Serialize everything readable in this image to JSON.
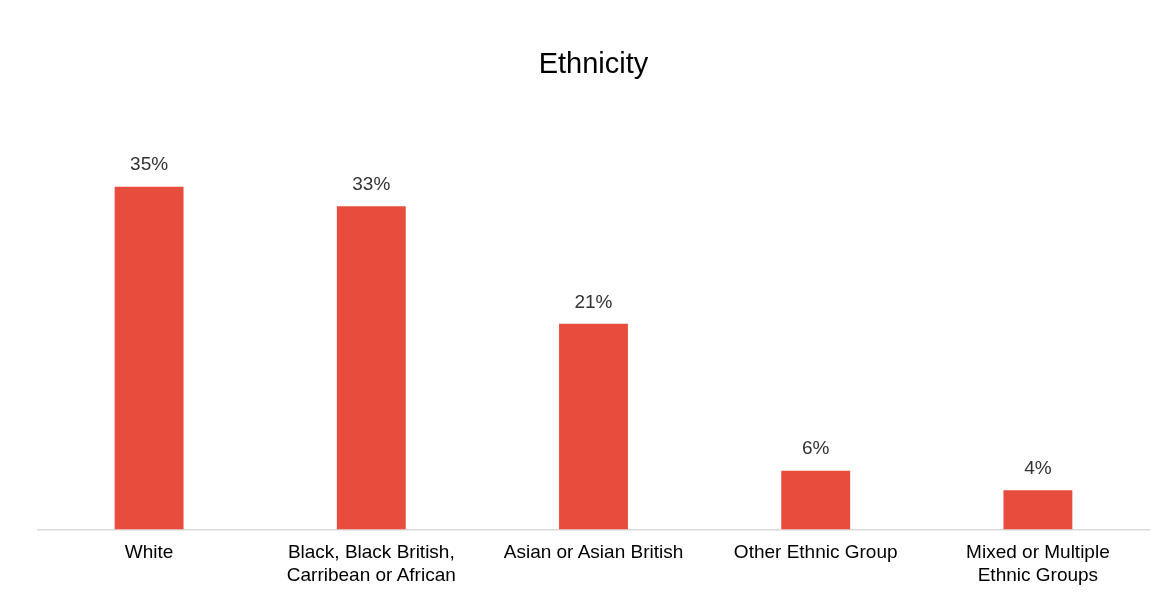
{
  "chart_data": {
    "type": "bar",
    "title": "Ethnicity",
    "categories": [
      "White",
      "Black, Black British, Carribean or African",
      "Asian or Asian British",
      "Other Ethnic Group",
      "Mixed or Multiple Ethnic Groups"
    ],
    "values": [
      35,
      33,
      21,
      6,
      4
    ],
    "value_labels": [
      "35%",
      "33%",
      "21%",
      "6%",
      "4%"
    ],
    "color": "#e84c3d",
    "grid": false,
    "legend": false
  }
}
